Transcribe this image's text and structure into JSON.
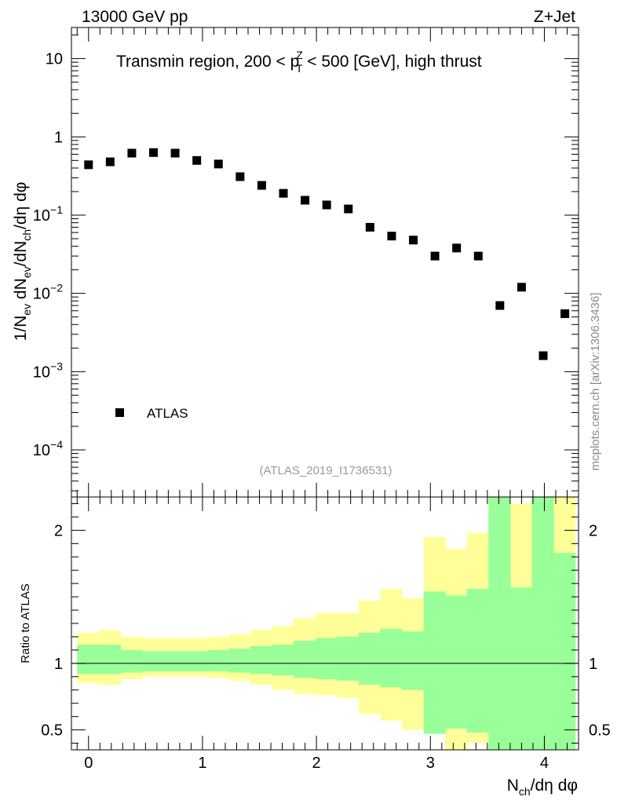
{
  "header": {
    "energy_label": "13000 GeV pp",
    "process_label": "Z+Jet"
  },
  "side_label": "mcplots.cern.ch [arXiv:1306.3436]",
  "chart_data": [
    {
      "type": "scatter",
      "title": "Transmin region, 200 < p_T^Z < 500 [GeV], high thrust",
      "title_parts": {
        "prefix": "Transmin region, 200 < p",
        "sup": "Z",
        "sub": "T",
        "suffix": " < 500 [GeV], high thrust"
      },
      "watermark": "(ATLAS_2019_I1736531)",
      "ylabel": "1/N_ev dN_ev/dN_ch/dη dφ",
      "ylabel_parts": {
        "p1": "1/N",
        "s1": "ev",
        "p2": " dN",
        "s2": "ev",
        "p3": "/dN",
        "s3": "ch",
        "p4": "/dη dφ"
      },
      "yscale": "log",
      "ylim": [
        2.5e-05,
        25
      ],
      "xlim": [
        -0.15,
        4.3
      ],
      "yticks": [
        {
          "value": 10,
          "label": "10"
        },
        {
          "value": 1,
          "label": "1"
        },
        {
          "value": 0.1,
          "base": "10",
          "exp": "−1"
        },
        {
          "value": 0.01,
          "base": "10",
          "exp": "−2"
        },
        {
          "value": 0.001,
          "base": "10",
          "exp": "−3"
        },
        {
          "value": 0.0001,
          "base": "10",
          "exp": "−4"
        }
      ],
      "legend": {
        "entries": [
          "ATLAS"
        ],
        "position": "lower-left"
      },
      "series": [
        {
          "name": "ATLAS",
          "x": [
            0.0,
            0.19,
            0.38,
            0.57,
            0.76,
            0.95,
            1.14,
            1.33,
            1.52,
            1.71,
            1.9,
            2.09,
            2.28,
            2.47,
            2.66,
            2.85,
            3.04,
            3.23,
            3.42,
            3.61,
            3.8,
            3.99,
            4.18
          ],
          "y": [
            0.44,
            0.48,
            0.62,
            0.63,
            0.62,
            0.5,
            0.45,
            0.31,
            0.24,
            0.19,
            0.155,
            0.135,
            0.12,
            0.07,
            0.054,
            0.048,
            0.03,
            0.038,
            0.03,
            0.007,
            0.012,
            0.0016,
            0.0055
          ]
        }
      ]
    },
    {
      "type": "area",
      "ylabel": "Ratio to ATLAS",
      "xlabel": "N_ch/dη dφ",
      "xlabel_parts": {
        "p1": "N",
        "s1": "ch",
        "p2": "/dη dφ"
      },
      "xlim": [
        -0.15,
        4.3
      ],
      "ylim": [
        0.35,
        2.25
      ],
      "xticks": [
        0,
        1,
        2,
        3,
        4
      ],
      "yticks": [
        0.5,
        1,
        2
      ],
      "reference_line": 1,
      "bin_edges": [
        -0.1,
        0.09,
        0.28,
        0.47,
        0.66,
        0.85,
        1.04,
        1.23,
        1.42,
        1.61,
        1.8,
        1.99,
        2.18,
        2.37,
        2.56,
        2.75,
        2.94,
        3.13,
        3.32,
        3.51,
        3.7,
        3.89,
        4.08,
        4.27
      ],
      "bands": [
        {
          "name": "total uncertainty",
          "color": "#ffff99",
          "low": [
            0.85,
            0.84,
            0.88,
            0.9,
            0.9,
            0.9,
            0.89,
            0.87,
            0.84,
            0.8,
            0.77,
            0.76,
            0.74,
            0.62,
            0.57,
            0.5,
            0.57,
            0.3,
            0.4,
            0.3,
            0.3,
            0.3,
            0.3
          ],
          "high": [
            1.23,
            1.25,
            1.2,
            1.19,
            1.19,
            1.19,
            1.2,
            1.22,
            1.25,
            1.28,
            1.34,
            1.38,
            1.38,
            1.47,
            1.56,
            1.49,
            1.95,
            1.86,
            1.98,
            2.3,
            2.2,
            2.3,
            2.3
          ]
        },
        {
          "name": "statistical uncertainty",
          "color": "#99ff99",
          "low": [
            0.92,
            0.92,
            0.93,
            0.94,
            0.94,
            0.94,
            0.94,
            0.93,
            0.92,
            0.91,
            0.89,
            0.88,
            0.87,
            0.84,
            0.82,
            0.8,
            0.47,
            0.51,
            0.48,
            0.3,
            0.3,
            0.3,
            0.3
          ],
          "high": [
            1.14,
            1.14,
            1.1,
            1.09,
            1.09,
            1.09,
            1.1,
            1.11,
            1.13,
            1.14,
            1.17,
            1.19,
            1.2,
            1.23,
            1.26,
            1.24,
            1.54,
            1.51,
            1.56,
            2.3,
            1.57,
            2.3,
            1.83
          ]
        }
      ]
    }
  ]
}
